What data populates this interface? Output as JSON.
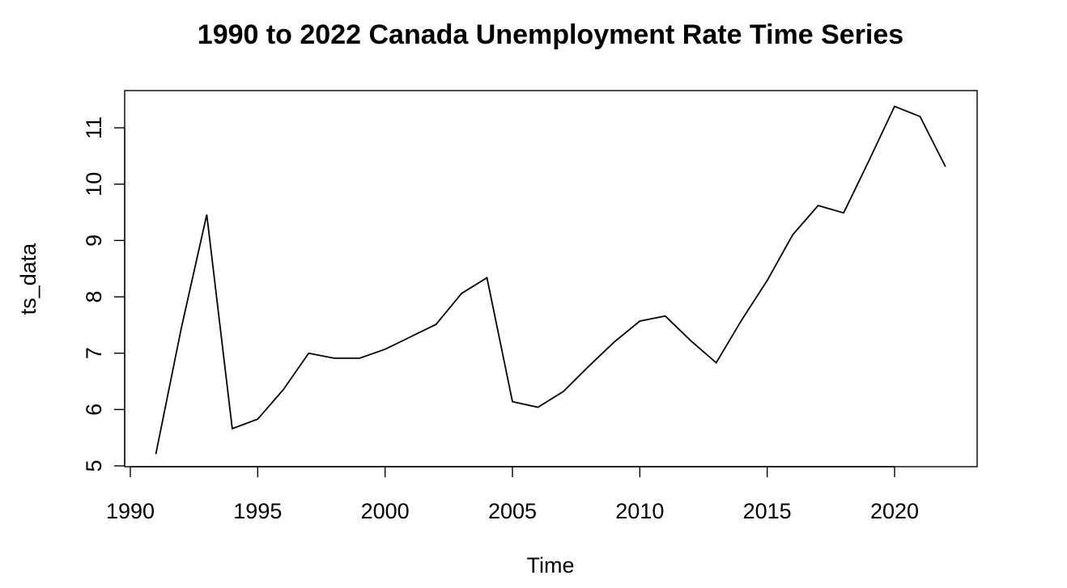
{
  "chart_data": {
    "type": "line",
    "title": "1990 to 2022 Canada Unemployment Rate Time Series",
    "xlabel": "Time",
    "ylabel": "ts_data",
    "xlim": [
      1990,
      2022
    ],
    "ylim": [
      5,
      11.5
    ],
    "x_ticks": [
      1990,
      1995,
      2000,
      2005,
      2010,
      2015,
      2020
    ],
    "y_ticks": [
      5,
      6,
      7,
      8,
      9,
      10,
      11
    ],
    "grid": false,
    "legend": "none",
    "series": [
      {
        "x": [
          1991,
          1992,
          1993,
          1994,
          1995,
          1996,
          1997,
          1998,
          1999,
          2000,
          2001,
          2002,
          2003,
          2004,
          2005,
          2006,
          2007,
          2008,
          2009,
          2010,
          2011,
          2012,
          2013,
          2014,
          2015,
          2016,
          2017,
          2018,
          2019,
          2020,
          2021,
          2022
        ],
        "values": [
          5.21,
          7.44,
          9.46,
          5.66,
          5.83,
          6.35,
          7.0,
          6.91,
          6.91,
          7.07,
          7.29,
          7.51,
          8.06,
          8.34,
          6.14,
          6.04,
          6.32,
          6.77,
          7.2,
          7.57,
          7.66,
          7.22,
          6.83,
          7.59,
          8.29,
          9.1,
          9.62,
          9.49,
          10.42,
          11.38,
          11.2,
          10.31
        ]
      }
    ],
    "colors": {
      "line": "#000000",
      "axis": "#000000",
      "background": "#ffffff"
    }
  }
}
